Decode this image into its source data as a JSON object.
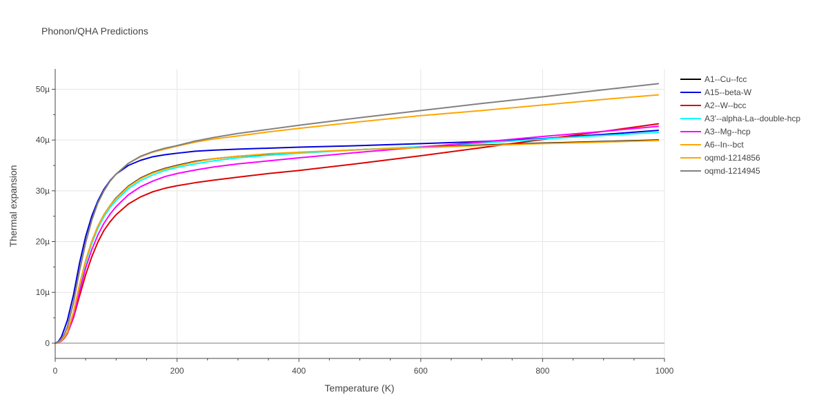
{
  "chart_data": {
    "type": "line",
    "title": "Phonon/QHA Predictions",
    "xlabel": "Temperature (K)",
    "ylabel": "Thermal expansion",
    "xlim": [
      0,
      1000
    ],
    "ylim": [
      -3,
      54
    ],
    "x_ticks": [
      {
        "value": 0,
        "label": "0"
      },
      {
        "value": 200,
        "label": "200"
      },
      {
        "value": 400,
        "label": "400"
      },
      {
        "value": 600,
        "label": "600"
      },
      {
        "value": 800,
        "label": "800"
      },
      {
        "value": 1000,
        "label": "1000"
      }
    ],
    "y_ticks": [
      {
        "value": 0,
        "label": "0"
      },
      {
        "value": 10,
        "label": "10µ"
      },
      {
        "value": 20,
        "label": "20µ"
      },
      {
        "value": 30,
        "label": "30µ"
      },
      {
        "value": 40,
        "label": "40µ"
      },
      {
        "value": 50,
        "label": "50µ"
      }
    ],
    "grid": true,
    "legend_position": "right",
    "x": [
      0,
      5,
      10,
      15,
      20,
      30,
      40,
      50,
      60,
      70,
      80,
      90,
      100,
      120,
      140,
      160,
      180,
      200,
      230,
      260,
      300,
      350,
      400,
      500,
      600,
      700,
      800,
      900,
      990
    ],
    "series": [
      {
        "name": "A1--Cu--fcc",
        "color": "#000000",
        "values": [
          0,
          0.1,
          0.5,
          1.2,
          2.2,
          6.0,
          11.5,
          16.2,
          20.0,
          23.0,
          25.3,
          27.1,
          28.6,
          30.9,
          32.5,
          33.6,
          34.4,
          35.0,
          35.8,
          36.3,
          36.8,
          37.2,
          37.5,
          38.1,
          38.6,
          39.0,
          39.4,
          39.7,
          40.0
        ]
      },
      {
        "name": "A15--beta-W",
        "color": "#0000dd",
        "values": [
          0,
          0.3,
          1.2,
          2.8,
          4.5,
          9.5,
          15.8,
          21.0,
          25.0,
          28.0,
          30.3,
          32.0,
          33.3,
          35.0,
          36.0,
          36.7,
          37.1,
          37.4,
          37.8,
          38.0,
          38.2,
          38.4,
          38.6,
          38.9,
          39.3,
          39.7,
          40.3,
          41.1,
          41.9
        ]
      },
      {
        "name": "A2--W--bcc",
        "color": "#dd0000",
        "values": [
          0,
          0.1,
          0.4,
          1.0,
          1.9,
          5.0,
          9.3,
          13.5,
          17.0,
          19.9,
          22.2,
          23.9,
          25.3,
          27.4,
          28.8,
          29.8,
          30.5,
          31.0,
          31.6,
          32.1,
          32.7,
          33.4,
          34.0,
          35.4,
          36.9,
          38.5,
          40.1,
          41.7,
          43.2
        ]
      },
      {
        "name": "A3'--alpha-La--double-hcp",
        "color": "#00ffff",
        "values": [
          0,
          0.1,
          0.5,
          1.2,
          2.2,
          5.8,
          11.0,
          15.8,
          19.6,
          22.6,
          24.9,
          26.7,
          28.1,
          30.4,
          32.0,
          33.1,
          34.0,
          34.6,
          35.3,
          35.9,
          36.5,
          37.0,
          37.4,
          38.1,
          38.7,
          39.4,
          40.2,
          40.9,
          41.5
        ]
      },
      {
        "name": "A3--Mg--hcp",
        "color": "#ff00ff",
        "values": [
          0,
          0.1,
          0.4,
          1.1,
          2.0,
          5.3,
          10.2,
          14.8,
          18.4,
          21.3,
          23.6,
          25.4,
          26.9,
          29.2,
          30.8,
          31.9,
          32.8,
          33.4,
          34.1,
          34.7,
          35.3,
          35.9,
          36.5,
          37.6,
          38.6,
          39.6,
          40.7,
          41.7,
          42.7
        ]
      },
      {
        "name": "A6--In--bct",
        "color": "#ffa500",
        "values": [
          0,
          0.1,
          0.5,
          1.2,
          2.2,
          6.1,
          11.5,
          16.3,
          20.0,
          23.0,
          25.3,
          27.1,
          28.5,
          30.8,
          32.4,
          33.5,
          34.3,
          34.9,
          35.7,
          36.3,
          36.8,
          37.3,
          37.6,
          38.1,
          38.5,
          38.9,
          39.3,
          39.6,
          39.9
        ]
      },
      {
        "name": "oqmd-1214856",
        "color": "#ffa500",
        "values": [
          0,
          0.2,
          0.8,
          1.8,
          3.2,
          8.0,
          14.3,
          19.8,
          24.2,
          27.6,
          30.0,
          31.9,
          33.3,
          35.4,
          36.7,
          37.6,
          38.2,
          38.8,
          39.6,
          40.2,
          40.8,
          41.6,
          42.3,
          43.6,
          44.8,
          45.8,
          46.9,
          48.0,
          48.9
        ]
      },
      {
        "name": "oqmd-1214945",
        "color": "#808080",
        "values": [
          0,
          0.2,
          0.8,
          1.8,
          3.2,
          8.0,
          14.3,
          19.8,
          24.2,
          27.6,
          30.0,
          31.9,
          33.3,
          35.4,
          36.8,
          37.7,
          38.4,
          38.9,
          39.8,
          40.5,
          41.3,
          42.1,
          42.9,
          44.4,
          45.8,
          47.2,
          48.5,
          49.9,
          51.1
        ]
      }
    ]
  }
}
